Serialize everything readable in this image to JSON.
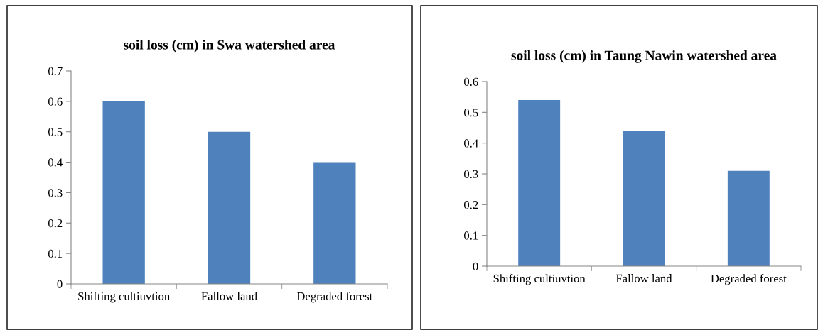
{
  "chart_data": [
    {
      "type": "bar",
      "title": "soil loss (cm) in Swa watershed area",
      "categories": [
        "Shifting cultiuvtion",
        "Fallow land",
        "Degraded forest"
      ],
      "values": [
        0.6,
        0.5,
        0.4
      ],
      "color": "#4f81bd",
      "ylim": [
        0,
        0.7
      ],
      "yticks": [
        0,
        0.1,
        0.2,
        0.3,
        0.4,
        0.5,
        0.6,
        0.7
      ],
      "grid": false
    },
    {
      "type": "bar",
      "title": "soil loss (cm) in Taung Nawin watershed area",
      "categories": [
        "Shifting cultiuvtion",
        "Fallow land",
        "Degraded forest"
      ],
      "values": [
        0.54,
        0.44,
        0.31
      ],
      "color": "#4f81bd",
      "ylim": [
        0,
        0.6
      ],
      "yticks": [
        0,
        0.1,
        0.2,
        0.3,
        0.4,
        0.5,
        0.6
      ],
      "grid": false
    }
  ]
}
